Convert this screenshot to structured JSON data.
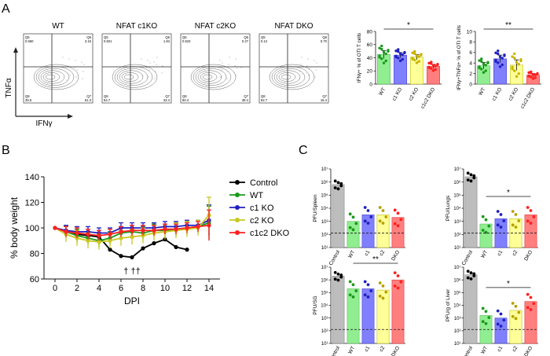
{
  "panels": {
    "a": "A",
    "b": "B",
    "c": "C"
  },
  "flow": {
    "titles": [
      "WT",
      "NFAT c1KO",
      "NFAT c2KO",
      "NFAT DKO"
    ],
    "y_axis": "TNFα",
    "x_axis": "IFNγ",
    "quadrants": [
      {
        "q5": "Q5",
        "v5": "0.650",
        "q6": "Q6",
        "v6": "3.15",
        "q8": "Q8",
        "v8": "35.5",
        "q7": "Q7",
        "v7": "61.3"
      },
      {
        "q5": "Q5",
        "v5": "0.821",
        "q6": "Q6",
        "v6": "1.84",
        "q8": "Q8",
        "v8": "64.7",
        "q7": "Q7",
        "v7": "33.4"
      },
      {
        "q5": "Q5",
        "v5": "0.623",
        "q6": "Q6",
        "v6": "0.27",
        "q8": "Q8",
        "v8": "60.4",
        "q7": "Q7",
        "v7": "39.4"
      },
      {
        "q5": "Q5",
        "v5": "0.12",
        "q6": "Q6",
        "v6": "0.70",
        "q8": "Q8",
        "v8": "82.7",
        "q7": "Q7",
        "v7": "16.4"
      }
    ]
  },
  "colors": {
    "WT": "#90ee90",
    "c1": "#8080ff",
    "c2": "#ffff99",
    "DKO": "#ff7f7f",
    "control": "#000000",
    "wt_line": "#1a9a1a",
    "c1_line": "#2020c0",
    "c2_line": "#c8c820",
    "dko_line": "#ff2020"
  },
  "chart_data": [
    {
      "id": "ifng",
      "type": "bar",
      "ylabel": "IFNγ+ % of OTI T cells",
      "ylim": [
        0,
        80
      ],
      "yticks": [
        "0",
        "20",
        "40",
        "60",
        "80"
      ],
      "categories": [
        "WT",
        "c1 KO",
        "c2 KO",
        "c1c2 DKO"
      ],
      "values": [
        45,
        44,
        41,
        27
      ],
      "errors": [
        6,
        4,
        4,
        3
      ],
      "significance": "*"
    },
    {
      "id": "ifng_tnfa",
      "type": "bar",
      "ylabel": "IFNγ+TNFα+ % of OTI T cells",
      "ylim": [
        0,
        10
      ],
      "yticks": [
        "0",
        "2",
        "4",
        "6",
        "8",
        "10"
      ],
      "categories": [
        "WT",
        "c1 KO",
        "c2 KO",
        "c1c2 DKO"
      ],
      "values": [
        3.5,
        4.8,
        3.6,
        1.7
      ],
      "errors": [
        0.6,
        0.7,
        1.0,
        0.3
      ],
      "significance": "**"
    },
    {
      "id": "weight",
      "type": "line",
      "ylabel": "% body weight",
      "xlabel": "DPI",
      "xlim": [
        -1,
        15
      ],
      "ylim": [
        60,
        140
      ],
      "xticks": [
        "0",
        "2",
        "4",
        "6",
        "8",
        "10",
        "12",
        "14"
      ],
      "yticks": [
        "60",
        "80",
        "100",
        "120",
        "140"
      ],
      "annotation": "† ††",
      "series": [
        {
          "name": "Control",
          "x": [
            0,
            1,
            2,
            3,
            4,
            5,
            6,
            7,
            8,
            9,
            10,
            11,
            12
          ],
          "values": [
            100,
            97,
            95,
            94,
            93,
            83,
            78,
            77,
            84,
            88,
            91,
            85,
            83
          ]
        },
        {
          "name": "WT",
          "x": [
            0,
            1,
            2,
            3,
            4,
            5,
            6,
            7,
            8,
            9,
            10,
            11,
            12,
            13,
            14
          ],
          "values": [
            100,
            97,
            94,
            92,
            90,
            92,
            96,
            97,
            96,
            98,
            98,
            99,
            100,
            101,
            104
          ]
        },
        {
          "name": "c1 KO",
          "x": [
            0,
            1,
            2,
            3,
            4,
            5,
            6,
            7,
            8,
            9,
            10,
            11,
            12,
            13,
            14
          ],
          "values": [
            100,
            98,
            97,
            97,
            96,
            96,
            100,
            100,
            100,
            100,
            101,
            101,
            102,
            102,
            106
          ]
        },
        {
          "name": "c2 KO",
          "x": [
            0,
            1,
            2,
            3,
            4,
            5,
            6,
            7,
            8,
            9,
            10,
            11,
            12,
            13,
            14
          ],
          "values": [
            100,
            95,
            92,
            90,
            89,
            90,
            92,
            93,
            94,
            96,
            97,
            98,
            99,
            100,
            110
          ]
        },
        {
          "name": "c1c2 DKO",
          "x": [
            0,
            1,
            2,
            3,
            4,
            5,
            6,
            7,
            8,
            9,
            10,
            11,
            12,
            13,
            14
          ],
          "values": [
            100,
            97,
            96,
            95,
            94,
            95,
            97,
            98,
            98,
            98,
            99,
            99,
            100,
            101,
            102
          ]
        }
      ]
    },
    {
      "id": "spleen",
      "type": "bar",
      "ylabel": "PFU/Spleen",
      "log_range": [
        1,
        7
      ],
      "yticks": [
        "10¹",
        "10²",
        "10³",
        "10⁴",
        "10⁵",
        "10⁶",
        "10⁷"
      ],
      "limit": 2.1,
      "categories": [
        "Control",
        "WT",
        "c1",
        "c2",
        "DKO"
      ],
      "values": [
        5.8,
        3.0,
        3.5,
        3.5,
        3.3
      ],
      "significance": ""
    },
    {
      "id": "lungs",
      "type": "bar",
      "ylabel": "PFU/Lungs",
      "log_range": [
        1,
        7
      ],
      "yticks": [
        "10¹",
        "10²",
        "10³",
        "10⁴",
        "10⁵",
        "10⁶",
        "10⁷"
      ],
      "limit": 2.1,
      "categories": [
        "Control",
        "WT",
        "c1",
        "c2",
        "DKO"
      ],
      "values": [
        6.4,
        2.8,
        3.2,
        3.2,
        3.5
      ],
      "significance": "*"
    },
    {
      "id": "sg",
      "type": "bar",
      "ylabel": "PFU/SG",
      "log_range": [
        1,
        7
      ],
      "yticks": [
        "10¹",
        "10²",
        "10³",
        "10⁴",
        "10⁵",
        "10⁶",
        "10⁷"
      ],
      "limit": 2.1,
      "categories": [
        "Control",
        "WT",
        "c1",
        "c2",
        "DKO"
      ],
      "values": [
        6.3,
        5.3,
        5.3,
        5.2,
        6.0
      ],
      "significance": "**"
    },
    {
      "id": "liver",
      "type": "bar",
      "ylabel": "PFU/g of Liver",
      "log_range": [
        1,
        7
      ],
      "yticks": [
        "10¹",
        "10²",
        "10³",
        "10⁴",
        "10⁵",
        "10⁶",
        "10⁷"
      ],
      "limit": 2.1,
      "categories": [
        "Control",
        "WT",
        "c1",
        "c2",
        "DKO"
      ],
      "values": [
        6.4,
        3.2,
        3.0,
        3.6,
        4.3
      ],
      "significance": "*"
    }
  ]
}
